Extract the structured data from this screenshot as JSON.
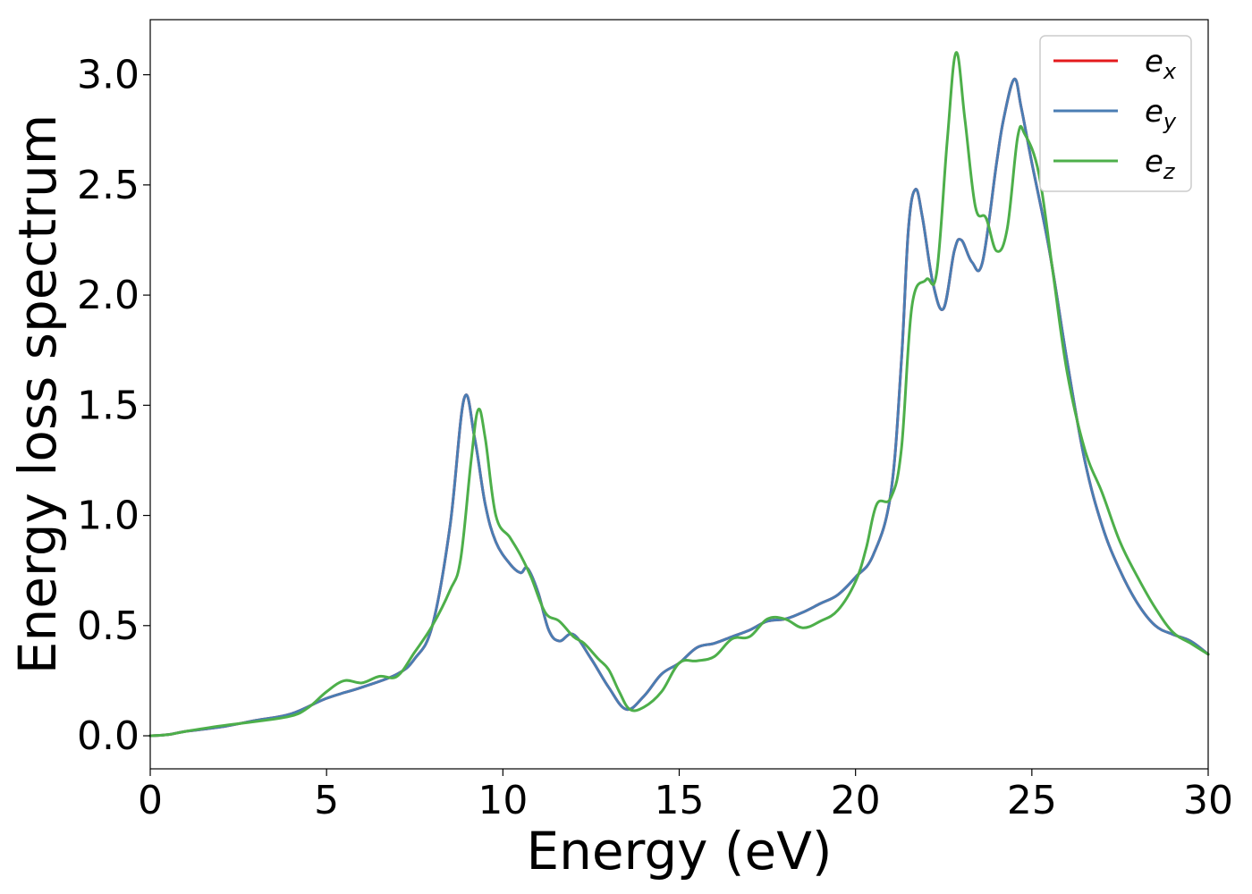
{
  "chart_data": {
    "type": "line",
    "title": "",
    "xlabel": "Energy (eV)",
    "ylabel": "Energy loss spectrum",
    "xlim": [
      0,
      30
    ],
    "ylim": [
      -0.15,
      3.25
    ],
    "xticks": [
      0,
      5,
      10,
      15,
      20,
      25,
      30
    ],
    "yticks": [
      0.0,
      0.5,
      1.0,
      1.5,
      2.0,
      2.5,
      3.0
    ],
    "xtick_labels": [
      "0",
      "5",
      "10",
      "15",
      "20",
      "25",
      "30"
    ],
    "ytick_labels": [
      "0.0",
      "0.5",
      "1.0",
      "1.5",
      "2.0",
      "2.5",
      "3.0"
    ],
    "grid": false,
    "legend_position": "top-right",
    "legend": [
      {
        "base": "e",
        "sub": "x",
        "color": "#e41a1c"
      },
      {
        "base": "e",
        "sub": "y",
        "color": "#4a7db3"
      },
      {
        "base": "e",
        "sub": "z",
        "color": "#4daf4a"
      }
    ],
    "series": [
      {
        "name": "ex",
        "color": "#e41a1c",
        "points": [
          [
            0,
            0
          ],
          [
            0.5,
            0.005
          ],
          [
            1,
            0.02
          ],
          [
            2,
            0.04
          ],
          [
            3,
            0.07
          ],
          [
            4,
            0.1
          ],
          [
            5,
            0.17
          ],
          [
            6,
            0.22
          ],
          [
            7,
            0.28
          ],
          [
            7.5,
            0.35
          ],
          [
            8,
            0.5
          ],
          [
            8.5,
            0.95
          ],
          [
            8.9,
            1.53
          ],
          [
            9.2,
            1.35
          ],
          [
            9.5,
            1.05
          ],
          [
            9.8,
            0.88
          ],
          [
            10.2,
            0.78
          ],
          [
            10.5,
            0.74
          ],
          [
            10.7,
            0.76
          ],
          [
            11,
            0.65
          ],
          [
            11.3,
            0.48
          ],
          [
            11.6,
            0.43
          ],
          [
            12,
            0.46
          ],
          [
            12.5,
            0.35
          ],
          [
            13,
            0.22
          ],
          [
            13.5,
            0.12
          ],
          [
            14,
            0.18
          ],
          [
            14.5,
            0.28
          ],
          [
            15,
            0.33
          ],
          [
            15.5,
            0.4
          ],
          [
            16,
            0.42
          ],
          [
            16.5,
            0.45
          ],
          [
            17,
            0.48
          ],
          [
            17.5,
            0.52
          ],
          [
            18,
            0.53
          ],
          [
            18.5,
            0.56
          ],
          [
            19,
            0.6
          ],
          [
            19.5,
            0.64
          ],
          [
            20,
            0.72
          ],
          [
            20.5,
            0.82
          ],
          [
            21,
            1.1
          ],
          [
            21.3,
            1.7
          ],
          [
            21.5,
            2.3
          ],
          [
            21.7,
            2.48
          ],
          [
            21.9,
            2.35
          ],
          [
            22.2,
            2.05
          ],
          [
            22.5,
            1.94
          ],
          [
            22.8,
            2.2
          ],
          [
            23,
            2.25
          ],
          [
            23.3,
            2.15
          ],
          [
            23.6,
            2.15
          ],
          [
            24,
            2.6
          ],
          [
            24.2,
            2.8
          ],
          [
            24.5,
            2.98
          ],
          [
            24.7,
            2.85
          ],
          [
            25,
            2.6
          ],
          [
            25.5,
            2.2
          ],
          [
            26,
            1.7
          ],
          [
            26.5,
            1.25
          ],
          [
            27,
            0.95
          ],
          [
            27.5,
            0.75
          ],
          [
            28,
            0.6
          ],
          [
            28.5,
            0.5
          ],
          [
            29,
            0.46
          ],
          [
            29.5,
            0.43
          ],
          [
            30,
            0.37
          ]
        ]
      },
      {
        "name": "ey",
        "color": "#4a7db3",
        "points": [
          [
            0,
            0
          ],
          [
            0.5,
            0.005
          ],
          [
            1,
            0.02
          ],
          [
            2,
            0.04
          ],
          [
            3,
            0.07
          ],
          [
            4,
            0.1
          ],
          [
            5,
            0.17
          ],
          [
            6,
            0.22
          ],
          [
            7,
            0.28
          ],
          [
            7.5,
            0.35
          ],
          [
            8,
            0.5
          ],
          [
            8.5,
            0.95
          ],
          [
            8.9,
            1.53
          ],
          [
            9.2,
            1.35
          ],
          [
            9.5,
            1.05
          ],
          [
            9.8,
            0.88
          ],
          [
            10.2,
            0.78
          ],
          [
            10.5,
            0.74
          ],
          [
            10.7,
            0.76
          ],
          [
            11,
            0.65
          ],
          [
            11.3,
            0.48
          ],
          [
            11.6,
            0.43
          ],
          [
            12,
            0.46
          ],
          [
            12.5,
            0.35
          ],
          [
            13,
            0.22
          ],
          [
            13.5,
            0.12
          ],
          [
            14,
            0.18
          ],
          [
            14.5,
            0.28
          ],
          [
            15,
            0.33
          ],
          [
            15.5,
            0.4
          ],
          [
            16,
            0.42
          ],
          [
            16.5,
            0.45
          ],
          [
            17,
            0.48
          ],
          [
            17.5,
            0.52
          ],
          [
            18,
            0.53
          ],
          [
            18.5,
            0.56
          ],
          [
            19,
            0.6
          ],
          [
            19.5,
            0.64
          ],
          [
            20,
            0.72
          ],
          [
            20.5,
            0.82
          ],
          [
            21,
            1.1
          ],
          [
            21.3,
            1.7
          ],
          [
            21.5,
            2.3
          ],
          [
            21.7,
            2.48
          ],
          [
            21.9,
            2.35
          ],
          [
            22.2,
            2.05
          ],
          [
            22.5,
            1.94
          ],
          [
            22.8,
            2.2
          ],
          [
            23,
            2.25
          ],
          [
            23.3,
            2.15
          ],
          [
            23.6,
            2.15
          ],
          [
            24,
            2.6
          ],
          [
            24.2,
            2.8
          ],
          [
            24.5,
            2.98
          ],
          [
            24.7,
            2.85
          ],
          [
            25,
            2.6
          ],
          [
            25.5,
            2.2
          ],
          [
            26,
            1.7
          ],
          [
            26.5,
            1.25
          ],
          [
            27,
            0.95
          ],
          [
            27.5,
            0.75
          ],
          [
            28,
            0.6
          ],
          [
            28.5,
            0.5
          ],
          [
            29,
            0.46
          ],
          [
            29.5,
            0.43
          ],
          [
            30,
            0.37
          ]
        ]
      },
      {
        "name": "ez",
        "color": "#4daf4a",
        "points": [
          [
            0,
            0
          ],
          [
            0.5,
            0.005
          ],
          [
            1,
            0.02
          ],
          [
            2,
            0.045
          ],
          [
            3,
            0.065
          ],
          [
            4,
            0.09
          ],
          [
            4.5,
            0.13
          ],
          [
            5,
            0.2
          ],
          [
            5.5,
            0.25
          ],
          [
            6,
            0.24
          ],
          [
            6.5,
            0.27
          ],
          [
            7,
            0.27
          ],
          [
            7.5,
            0.38
          ],
          [
            8,
            0.5
          ],
          [
            8.5,
            0.66
          ],
          [
            8.8,
            0.8
          ],
          [
            9.1,
            1.25
          ],
          [
            9.3,
            1.48
          ],
          [
            9.5,
            1.35
          ],
          [
            9.8,
            1.0
          ],
          [
            10.2,
            0.9
          ],
          [
            10.5,
            0.82
          ],
          [
            10.8,
            0.72
          ],
          [
            11.2,
            0.56
          ],
          [
            11.6,
            0.52
          ],
          [
            12,
            0.45
          ],
          [
            12.3,
            0.42
          ],
          [
            12.7,
            0.35
          ],
          [
            13,
            0.3
          ],
          [
            13.3,
            0.2
          ],
          [
            13.6,
            0.12
          ],
          [
            14,
            0.13
          ],
          [
            14.5,
            0.2
          ],
          [
            15,
            0.33
          ],
          [
            15.5,
            0.34
          ],
          [
            16,
            0.36
          ],
          [
            16.5,
            0.44
          ],
          [
            17,
            0.45
          ],
          [
            17.5,
            0.53
          ],
          [
            18,
            0.53
          ],
          [
            18.5,
            0.49
          ],
          [
            19,
            0.52
          ],
          [
            19.5,
            0.57
          ],
          [
            20,
            0.7
          ],
          [
            20.3,
            0.85
          ],
          [
            20.6,
            1.05
          ],
          [
            21,
            1.08
          ],
          [
            21.3,
            1.3
          ],
          [
            21.6,
            1.95
          ],
          [
            22,
            2.07
          ],
          [
            22.3,
            2.1
          ],
          [
            22.6,
            2.7
          ],
          [
            22.85,
            3.1
          ],
          [
            23.1,
            2.8
          ],
          [
            23.4,
            2.4
          ],
          [
            23.7,
            2.35
          ],
          [
            24,
            2.2
          ],
          [
            24.3,
            2.3
          ],
          [
            24.6,
            2.72
          ],
          [
            24.8,
            2.73
          ],
          [
            25.2,
            2.55
          ],
          [
            25.6,
            2.1
          ],
          [
            26,
            1.65
          ],
          [
            26.5,
            1.3
          ],
          [
            27,
            1.1
          ],
          [
            27.5,
            0.88
          ],
          [
            28,
            0.72
          ],
          [
            28.5,
            0.58
          ],
          [
            29,
            0.47
          ],
          [
            29.5,
            0.42
          ],
          [
            30,
            0.37
          ]
        ]
      }
    ]
  }
}
